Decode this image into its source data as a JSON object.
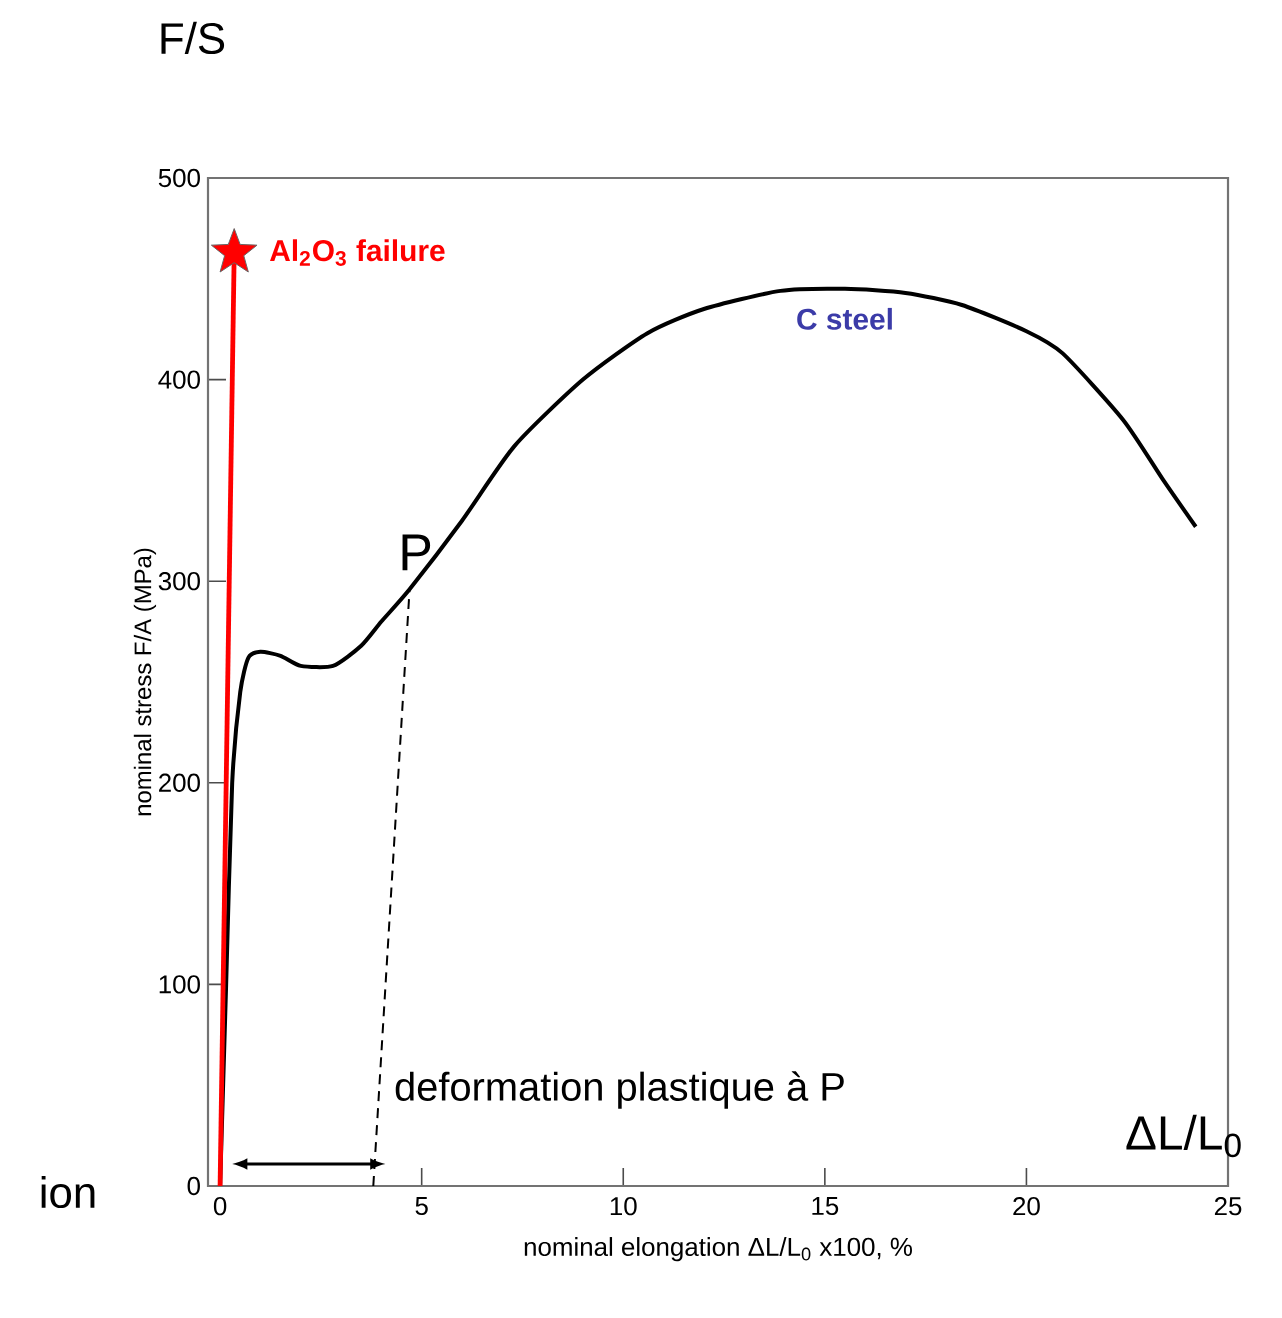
{
  "chart_data": {
    "type": "line",
    "xlabel": "nominal elongation ΔL/L$_{0}$ x100, %",
    "ylabel": "nominal stress F/A  (MPa)",
    "xlim": [
      -0.3,
      25
    ],
    "ylim": [
      0,
      500
    ],
    "xticks": [
      0,
      5,
      10,
      15,
      20,
      25
    ],
    "yticks": [
      0,
      100,
      200,
      300,
      400,
      500
    ],
    "annotations": [
      "F/S",
      "ΔL/L$_{0}$",
      "ion",
      "deformation plastique à P",
      {
        "text": "P",
        "x": 4.7,
        "y": 296
      }
    ],
    "series": [
      {
        "name": "C steel",
        "color": "#000000",
        "x": [
          0,
          0.15,
          0.3,
          0.5,
          0.7,
          1.0,
          1.5,
          2.0,
          2.8,
          3.5,
          4.0,
          4.7,
          6,
          7.3,
          9,
          10.6,
          12,
          13.9,
          15.5,
          17,
          18.4,
          20,
          20.9,
          22.4,
          23.4,
          24.2
        ],
        "values": [
          0,
          100,
          200,
          245,
          262,
          265,
          263,
          258,
          258,
          268,
          280,
          296,
          330,
          367,
          400,
          423,
          435,
          444,
          445,
          443,
          437,
          424,
          413,
          380,
          350,
          327
        ]
      },
      {
        "color": "#ff0000",
        "x": [
          0,
          0.35
        ],
        "values": [
          0,
          463
        ]
      },
      {
        "type": "scatter",
        "name": "Al$_{2}$O$_{3}$ failure",
        "color": "#ff0000",
        "marker": "star",
        "x": [
          0.35
        ],
        "values": [
          463
        ]
      },
      {
        "color": "#000000",
        "line_style": "dashed",
        "x": [
          3.8,
          4.7
        ],
        "values": [
          0,
          296
        ]
      }
    ]
  }
}
